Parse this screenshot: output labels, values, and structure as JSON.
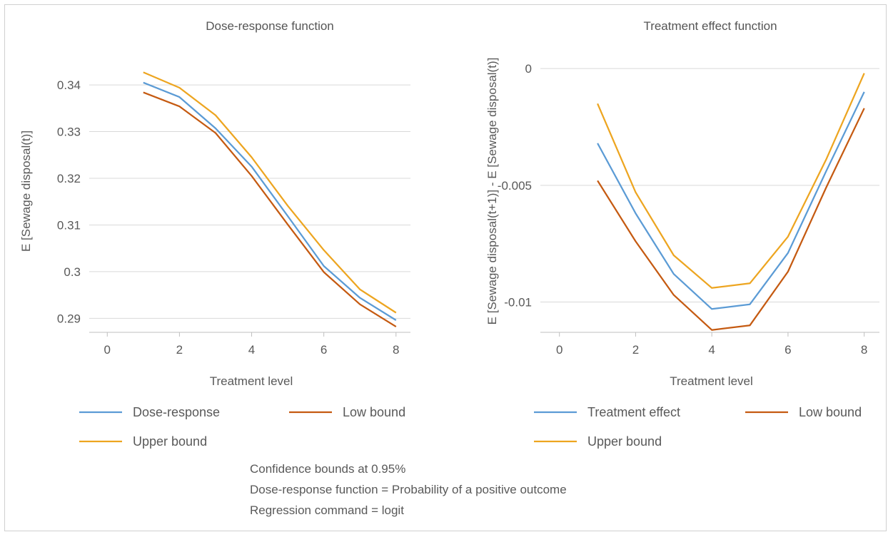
{
  "chart_data": [
    {
      "type": "line",
      "title": "Dose-response function",
      "xlabel": "Treatment level",
      "ylabel": "E [Sewage disposal(t)]",
      "xlim": [
        -0.5,
        8.4
      ],
      "ylim": [
        0.287,
        0.3475
      ],
      "xticks": [
        0,
        2,
        4,
        6,
        8
      ],
      "xtick_labels": [
        "0",
        "2",
        "4",
        "6",
        "8"
      ],
      "yticks": [
        0.29,
        0.3,
        0.31,
        0.32,
        0.33,
        0.34
      ],
      "ytick_labels": [
        "0.29",
        "0.3",
        "0.31",
        "0.32",
        "0.33",
        "0.34"
      ],
      "grid": "horizontal",
      "legend_position": "bottom",
      "x": [
        1,
        2,
        3,
        4,
        5,
        6,
        7,
        8
      ],
      "series": [
        {
          "name": "Dose-response",
          "color": "#5B9BD5",
          "values": [
            0.3405,
            0.3374,
            0.3307,
            0.3225,
            0.3119,
            0.3012,
            0.2944,
            0.2896
          ]
        },
        {
          "name": "Low bound",
          "color": "#C55A11",
          "values": [
            0.3384,
            0.3354,
            0.3297,
            0.3205,
            0.3101,
            0.2999,
            0.293,
            0.2882
          ]
        },
        {
          "name": "Upper bound",
          "color": "#EDA520",
          "values": [
            0.3427,
            0.3394,
            0.3335,
            0.3245,
            0.3141,
            0.3046,
            0.2962,
            0.2912
          ]
        }
      ]
    },
    {
      "type": "line",
      "title": "Treatment effect function",
      "xlabel": "Treatment level",
      "ylabel": "E [Sewage disposal(t+1)] - E [Sewage disposal(t)]",
      "xlim": [
        -0.5,
        8.4
      ],
      "ylim": [
        -0.0113,
        0.0008
      ],
      "xticks": [
        0,
        2,
        4,
        6,
        8
      ],
      "xtick_labels": [
        "0",
        "2",
        "4",
        "6",
        "8"
      ],
      "yticks": [
        -0.01,
        -0.005,
        0
      ],
      "ytick_labels": [
        "-0.01",
        "-0.005",
        "0"
      ],
      "grid": "horizontal",
      "legend_position": "bottom",
      "x": [
        1,
        2,
        3,
        4,
        5,
        6,
        7,
        8
      ],
      "series": [
        {
          "name": "Treatment effect",
          "color": "#5B9BD5",
          "values": [
            -0.0032,
            -0.0062,
            -0.0088,
            -0.0103,
            -0.0101,
            -0.0079,
            -0.0044,
            -0.001
          ]
        },
        {
          "name": "Low bound",
          "color": "#C55A11",
          "values": [
            -0.0048,
            -0.0074,
            -0.0097,
            -0.0112,
            -0.011,
            -0.0087,
            -0.0051,
            -0.0017
          ]
        },
        {
          "name": "Upper bound",
          "color": "#EDA520",
          "values": [
            -0.0015,
            -0.0053,
            -0.008,
            -0.0094,
            -0.0092,
            -0.0072,
            -0.0039,
            -0.0002
          ]
        }
      ]
    }
  ],
  "notes": [
    "Confidence bounds at 0.95%",
    "Dose-response function = Probability of a positive outcome",
    "Regression command = logit"
  ]
}
